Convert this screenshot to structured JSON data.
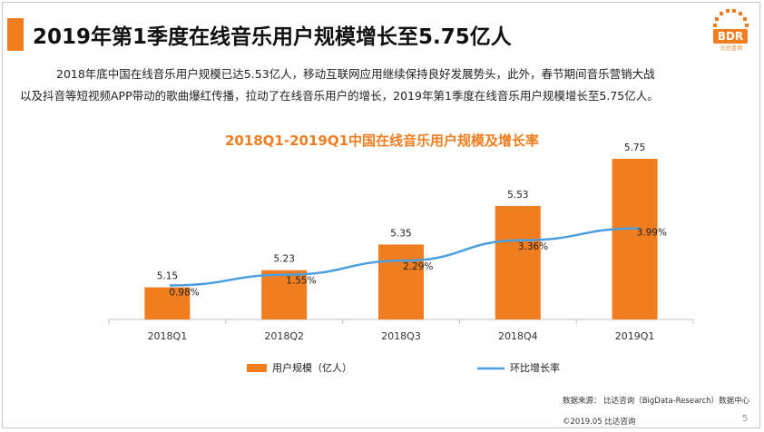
{
  "header": {
    "title": "2019年第1季度在线音乐用户规模增长至5.75亿人",
    "logo_text": "BDR",
    "logo_sub": "比达咨询"
  },
  "intro": {
    "line1": "2018年底中国在线音乐用户规模已达5.53亿人，移动互联网应用继续保持良好发展势头，此外，春节期间音乐营销大战",
    "line2": "以及抖音等短视频APP带动的歌曲爆红传播，拉动了在线音乐用户的增长，2019年第1季度在线音乐用户规模增长至5.75亿人。"
  },
  "colors": {
    "accent": "#f07d1f",
    "bar": "#f07d1f",
    "line": "#4a9fe0"
  },
  "chart_data": {
    "type": "bar",
    "title": "2018Q1-2019Q1中国在线音乐用户规模及增长率",
    "categories": [
      "2018Q1",
      "2018Q2",
      "2018Q3",
      "2018Q4",
      "2019Q1"
    ],
    "series": [
      {
        "name": "用户规模（亿人）",
        "type": "bar",
        "values": [
          5.15,
          5.23,
          5.35,
          5.53,
          5.75
        ],
        "labels": [
          "5.15",
          "5.23",
          "5.35",
          "5.53",
          "5.75"
        ]
      },
      {
        "name": "环比增长率",
        "type": "line",
        "values": [
          0.98,
          1.55,
          2.29,
          3.36,
          3.99
        ],
        "labels": [
          "0.98%",
          "1.55%",
          "2.29%",
          "3.36%",
          "3.99%"
        ]
      }
    ],
    "legend_position": "bottom",
    "grid": false
  },
  "footer": {
    "source": "数据来源：  比达咨询（BigData-Research）数据中心",
    "copyright": "©2019.05  比达咨询",
    "page": "5"
  }
}
